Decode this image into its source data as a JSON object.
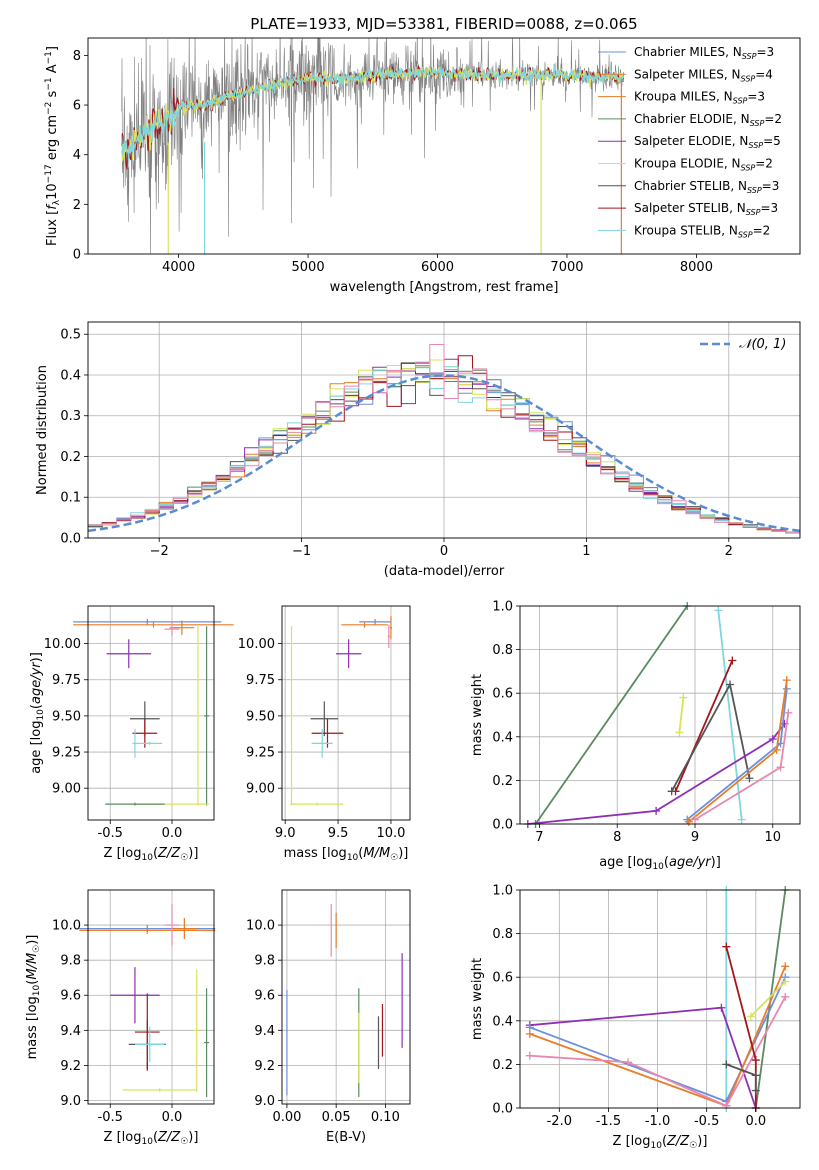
{
  "title": "PLATE=1933, MJD=53381, FIBERID=0088, z=0.065",
  "colors": {
    "Chabrier MILES": "#6a8fdc",
    "Salpeter MILES": "#e87d2a",
    "Kroupa MILES": "#e07b28",
    "Chabrier ELODIE": "#5a8a62",
    "Salpeter ELODIE": "#8e2fb3",
    "Kroupa ELODIE": "#d8e35a",
    "Chabrier STELIB": "#555555",
    "Salpeter STELIB": "#a3161a",
    "Kroupa STELIB": "#7fd6e0",
    "pink": "#e887b0",
    "data": "#808080",
    "gaussian": "#5b8bd0"
  },
  "chart_data": [
    {
      "type": "line",
      "xlabel": "wavelength [Angstrom, rest frame]",
      "ylabel": "Flux [f_λ 10^-17 erg cm^-2 s^-1 A^-1]",
      "xlim": [
        3300,
        8800
      ],
      "ylim": [
        0,
        8.7
      ],
      "xticks": [
        4000,
        5000,
        6000,
        7000,
        8000
      ],
      "yticks": [
        0,
        2,
        4,
        6,
        8
      ],
      "legend_position": "right",
      "legend": [
        {
          "label": "Chabrier MILES, N",
          "sub": "SSP",
          "tail": "=3",
          "color": "#6a8fdc"
        },
        {
          "label": "Salpeter MILES, N",
          "sub": "SSP",
          "tail": "=4",
          "color": "#e87d2a"
        },
        {
          "label": "Kroupa MILES, N",
          "sub": "SSP",
          "tail": "=3",
          "color": "#e07b28"
        },
        {
          "label": "Chabrier ELODIE, N",
          "sub": "SSP",
          "tail": "=2",
          "color": "#5a8a62"
        },
        {
          "label": "Salpeter ELODIE, N",
          "sub": "SSP",
          "tail": "=5",
          "color": "#8e2fb3"
        },
        {
          "label": "Kroupa ELODIE, N",
          "sub": "SSP",
          "tail": "=2",
          "color": "#d8e35a"
        },
        {
          "label": "Chabrier STELIB, N",
          "sub": "SSP",
          "tail": "=3",
          "color": "#555555"
        },
        {
          "label": "Salpeter STELIB, N",
          "sub": "SSP",
          "tail": "=3",
          "color": "#a3161a"
        },
        {
          "label": "Kroupa STELIB, N",
          "sub": "SSP",
          "tail": "=2",
          "color": "#7fd6e0"
        }
      ],
      "continuum": [
        [
          3500,
          4.3
        ],
        [
          3600,
          4.1
        ],
        [
          3700,
          4.6
        ],
        [
          3800,
          5.1
        ],
        [
          3900,
          5.3
        ],
        [
          4000,
          5.9
        ],
        [
          4200,
          6.0
        ],
        [
          4500,
          6.5
        ],
        [
          4800,
          6.9
        ],
        [
          5000,
          7.1
        ],
        [
          5200,
          7.0
        ],
        [
          5500,
          7.2
        ],
        [
          5800,
          7.3
        ],
        [
          6000,
          7.3
        ],
        [
          6300,
          7.2
        ],
        [
          6600,
          7.2
        ],
        [
          7000,
          7.2
        ],
        [
          7400,
          7.1
        ],
        [
          7800,
          6.9
        ],
        [
          8200,
          6.7
        ],
        [
          8500,
          6.6
        ]
      ]
    },
    {
      "type": "line",
      "xlabel": "(data-model)/error",
      "ylabel": "Normed distribution",
      "xlim": [
        -2.5,
        2.5
      ],
      "ylim": [
        0,
        0.53
      ],
      "xticks": [
        -2,
        -1,
        0,
        1,
        2
      ],
      "yticks": [
        0.0,
        0.1,
        0.2,
        0.3,
        0.4,
        0.5
      ],
      "legend_label": "𝒩(0, 1)",
      "legend_position": "top-right"
    },
    {
      "type": "scatter",
      "xlabel": "Z [log10(Z/Z☉)]",
      "ylabel": "age  [log10(age/yr)]",
      "xlim": [
        -0.68,
        0.34
      ],
      "ylim": [
        8.78,
        10.26
      ],
      "xticks": [
        -0.5,
        0.0
      ],
      "yticks": [
        9.0,
        9.25,
        9.5,
        9.75,
        10.0
      ],
      "points": [
        {
          "c": "Chabrier MILES",
          "x": -0.2,
          "y": 10.15,
          "xe": 0.6,
          "ye": 0.02
        },
        {
          "c": "Salpeter MILES",
          "x": -0.15,
          "y": 10.13,
          "xe": 0.65,
          "ye": 0.02
        },
        {
          "c": "Kroupa MILES",
          "x": 0.08,
          "y": 10.11,
          "xe": 0.1,
          "ye": 0.05
        },
        {
          "c": "pink",
          "x": 0.0,
          "y": 10.1,
          "xe": 0.06,
          "ye": 0.05
        },
        {
          "c": "Chabrier ELODIE",
          "x": 0.28,
          "y": 9.5,
          "xe": 0.02,
          "ye": 0.62
        },
        {
          "c": "Salpeter ELODIE",
          "x": -0.35,
          "y": 9.93,
          "xe": 0.18,
          "ye": 0.1
        },
        {
          "c": "Kroupa ELODIE",
          "x": 0.21,
          "y": 9.5,
          "xe": 0.02,
          "ye": 0.62
        },
        {
          "c": "Kroupa ELODIE",
          "x": 0.0,
          "y": 8.89,
          "xe": 0.3,
          "ye": 0.01
        },
        {
          "c": "Chabrier ELODIE",
          "x": -0.3,
          "y": 8.89,
          "xe": 0.24,
          "ye": 0.01
        },
        {
          "c": "Chabrier STELIB",
          "x": -0.22,
          "y": 9.48,
          "xe": 0.12,
          "ye": 0.12
        },
        {
          "c": "Salpeter STELIB",
          "x": -0.22,
          "y": 9.38,
          "xe": 0.1,
          "ye": 0.1
        },
        {
          "c": "Kroupa STELIB",
          "x": -0.3,
          "y": 9.31,
          "xe": 0.02,
          "ye": 0.1
        },
        {
          "c": "Kroupa STELIB",
          "x": -0.18,
          "y": 9.31,
          "xe": 0.1,
          "ye": 0.01
        }
      ]
    },
    {
      "type": "scatter",
      "xlabel": "mass [log10(M/M☉)]",
      "ylabel": "",
      "xlim": [
        8.97,
        10.18
      ],
      "ylim": [
        8.78,
        10.26
      ],
      "xticks": [
        9.0,
        9.5,
        10.0
      ],
      "yticks": [
        9.0,
        9.25,
        9.5,
        9.75,
        10.0
      ],
      "points": [
        {
          "c": "Chabrier MILES",
          "x": 9.85,
          "y": 10.15,
          "xe": 0.15,
          "ye": 0.02
        },
        {
          "c": "Salpeter MILES",
          "x": 9.75,
          "y": 10.13,
          "xe": 0.22,
          "ye": 0.02
        },
        {
          "c": "Kroupa MILES",
          "x": 10.0,
          "y": 10.11,
          "xe": 0.01,
          "ye": 0.08
        },
        {
          "c": "pink",
          "x": 9.98,
          "y": 10.05,
          "xe": 0.01,
          "ye": 0.08
        },
        {
          "c": "Salpeter ELODIE",
          "x": 9.6,
          "y": 9.93,
          "xe": 0.12,
          "ye": 0.1
        },
        {
          "c": "Kroupa ELODIE",
          "x": 9.06,
          "y": 9.5,
          "xe": 0.01,
          "ye": 0.62
        },
        {
          "c": "Kroupa ELODIE",
          "x": 9.3,
          "y": 8.89,
          "xe": 0.25,
          "ye": 0.01
        },
        {
          "c": "Chabrier STELIB",
          "x": 9.37,
          "y": 9.48,
          "xe": 0.13,
          "ye": 0.12
        },
        {
          "c": "Salpeter STELIB",
          "x": 9.4,
          "y": 9.38,
          "xe": 0.15,
          "ye": 0.1
        },
        {
          "c": "Kroupa STELIB",
          "x": 9.35,
          "y": 9.31,
          "xe": 0.1,
          "ye": 0.1
        }
      ]
    },
    {
      "type": "line",
      "xlabel": "age  [log10(age/yr)]",
      "ylabel": "mass weight",
      "xlim": [
        6.75,
        10.35
      ],
      "ylim": [
        0,
        1.0
      ],
      "xticks": [
        7,
        8,
        9,
        10
      ],
      "yticks": [
        0.0,
        0.2,
        0.4,
        0.6,
        0.8,
        1.0
      ],
      "series": [
        {
          "c": "Chabrier ELODIE",
          "pts": [
            [
              6.95,
              0.0
            ],
            [
              8.9,
              1.0
            ]
          ]
        },
        {
          "c": "Kroupa ELODIE",
          "pts": [
            [
              8.8,
              0.42
            ],
            [
              8.85,
              0.58
            ]
          ]
        },
        {
          "c": "Kroupa STELIB",
          "pts": [
            [
              9.3,
              0.98
            ],
            [
              9.6,
              0.02
            ]
          ]
        },
        {
          "c": "Salpeter STELIB",
          "pts": [
            [
              8.75,
              0.15
            ],
            [
              9.48,
              0.75
            ]
          ]
        },
        {
          "c": "Chabrier STELIB",
          "pts": [
            [
              8.7,
              0.15
            ],
            [
              9.45,
              0.64
            ],
            [
              9.7,
              0.21
            ]
          ]
        },
        {
          "c": "Salpeter ELODIE",
          "pts": [
            [
              6.85,
              0.0
            ],
            [
              8.5,
              0.06
            ],
            [
              10.0,
              0.39
            ],
            [
              10.15,
              0.46
            ]
          ]
        },
        {
          "c": "Chabrier MILES",
          "pts": [
            [
              8.9,
              0.02
            ],
            [
              10.1,
              0.37
            ],
            [
              10.18,
              0.62
            ]
          ]
        },
        {
          "c": "Salpeter MILES",
          "pts": [
            [
              8.92,
              0.01
            ],
            [
              10.05,
              0.34
            ],
            [
              10.18,
              0.66
            ]
          ]
        },
        {
          "c": "pink",
          "pts": [
            [
              9.0,
              0.02
            ],
            [
              10.1,
              0.26
            ],
            [
              10.2,
              0.51
            ]
          ]
        }
      ]
    },
    {
      "type": "scatter",
      "xlabel": "Z [log10(Z/Z☉)]",
      "ylabel": "mass [log10(M/M☉)]",
      "xlim": [
        -0.68,
        0.34
      ],
      "ylim": [
        8.98,
        10.2
      ],
      "xticks": [
        -0.5,
        0.0
      ],
      "yticks": [
        9.0,
        9.2,
        9.4,
        9.6,
        9.8,
        10.0
      ],
      "points": [
        {
          "c": "Chabrier MILES",
          "x": -0.2,
          "y": 9.98,
          "xe": 0.55,
          "ye": 0.02
        },
        {
          "c": "Salpeter MILES",
          "x": -0.2,
          "y": 9.97,
          "xe": 0.55,
          "ye": 0.02
        },
        {
          "c": "Kroupa MILES",
          "x": 0.1,
          "y": 9.98,
          "xe": 0.1,
          "ye": 0.06
        },
        {
          "c": "pink",
          "x": 0.0,
          "y": 10.0,
          "xe": 0.06,
          "ye": 0.12
        },
        {
          "c": "Chabrier ELODIE",
          "x": 0.28,
          "y": 9.33,
          "xe": 0.02,
          "ye": 0.31
        },
        {
          "c": "Salpeter ELODIE",
          "x": -0.3,
          "y": 9.6,
          "xe": 0.2,
          "ye": 0.16
        },
        {
          "c": "Kroupa ELODIE",
          "x": 0.2,
          "y": 9.4,
          "xe": 0.02,
          "ye": 0.35
        },
        {
          "c": "Kroupa ELODIE",
          "x": -0.1,
          "y": 9.06,
          "xe": 0.3,
          "ye": 0.01
        },
        {
          "c": "Chabrier STELIB",
          "x": -0.2,
          "y": 9.32,
          "xe": 0.15,
          "ye": 0.14
        },
        {
          "c": "Salpeter STELIB",
          "x": -0.2,
          "y": 9.39,
          "xe": 0.1,
          "ye": 0.22
        },
        {
          "c": "Kroupa STELIB",
          "x": -0.18,
          "y": 9.32,
          "xe": 0.12,
          "ye": 0.1
        }
      ]
    },
    {
      "type": "scatter",
      "xlabel": "E(B-V)",
      "ylabel": "",
      "xlim": [
        -0.005,
        0.125
      ],
      "ylim": [
        8.98,
        10.2
      ],
      "xticks": [
        0.0,
        0.05,
        0.1
      ],
      "yticks": [
        9.0,
        9.2,
        9.4,
        9.6,
        9.8,
        10.0
      ],
      "points": [
        {
          "c": "Chabrier MILES",
          "x": 0.0,
          "y": 9.33,
          "xe": 0.0,
          "ye": 0.3
        },
        {
          "c": "pink",
          "x": 0.045,
          "y": 9.97,
          "xe": 0.0,
          "ye": 0.15
        },
        {
          "c": "Kroupa MILES",
          "x": 0.05,
          "y": 9.97,
          "xe": 0.0,
          "ye": 0.1
        },
        {
          "c": "Chabrier ELODIE",
          "x": 0.073,
          "y": 9.33,
          "xe": 0.0,
          "ye": 0.31
        },
        {
          "c": "Kroupa ELODIE",
          "x": 0.073,
          "y": 9.3,
          "xe": 0.0,
          "ye": 0.2
        },
        {
          "c": "Chabrier STELIB",
          "x": 0.093,
          "y": 9.33,
          "xe": 0.0,
          "ye": 0.15
        },
        {
          "c": "Salpeter STELIB",
          "x": 0.097,
          "y": 9.4,
          "xe": 0.0,
          "ye": 0.15
        },
        {
          "c": "Salpeter ELODIE",
          "x": 0.117,
          "y": 9.57,
          "xe": 0.0,
          "ye": 0.27
        }
      ]
    },
    {
      "type": "line",
      "xlabel": "Z [log10(Z/Z☉)]",
      "ylabel": "mass weight",
      "xlim": [
        -2.4,
        0.45
      ],
      "ylim": [
        0,
        1.0
      ],
      "xticks": [
        -2.0,
        -1.5,
        -1.0,
        -0.5,
        0.0
      ],
      "yticks": [
        0.0,
        0.2,
        0.4,
        0.6,
        0.8,
        1.0
      ],
      "series": [
        {
          "c": "Kroupa STELIB",
          "pts": [
            [
              -0.3,
              0.0
            ],
            [
              -0.3,
              1.0
            ]
          ]
        },
        {
          "c": "Chabrier ELODIE",
          "pts": [
            [
              0.0,
              0.0
            ],
            [
              0.3,
              1.0
            ]
          ]
        },
        {
          "c": "Salpeter ELODIE",
          "pts": [
            [
              -2.3,
              0.38
            ],
            [
              -0.35,
              0.46
            ],
            [
              0.0,
              0.0
            ]
          ]
        },
        {
          "c": "Chabrier MILES",
          "pts": [
            [
              -2.3,
              0.37
            ],
            [
              -0.3,
              0.03
            ],
            [
              0.3,
              0.6
            ]
          ]
        },
        {
          "c": "Salpeter MILES",
          "pts": [
            [
              -2.3,
              0.34
            ],
            [
              -0.3,
              0.01
            ],
            [
              0.3,
              0.65
            ]
          ]
        },
        {
          "c": "pink",
          "pts": [
            [
              -2.3,
              0.24
            ],
            [
              -1.3,
              0.21
            ],
            [
              -0.3,
              0.01
            ],
            [
              0.3,
              0.51
            ]
          ]
        },
        {
          "c": "Kroupa ELODIE",
          "pts": [
            [
              -0.05,
              0.42
            ],
            [
              0.3,
              0.58
            ]
          ]
        },
        {
          "c": "Salpeter STELIB",
          "pts": [
            [
              -0.3,
              0.74
            ],
            [
              0.0,
              0.22
            ],
            [
              0.0,
              0.0
            ]
          ]
        },
        {
          "c": "Chabrier STELIB",
          "pts": [
            [
              -0.3,
              0.2
            ],
            [
              0.0,
              0.15
            ],
            [
              0.0,
              0.08
            ]
          ]
        }
      ]
    }
  ]
}
